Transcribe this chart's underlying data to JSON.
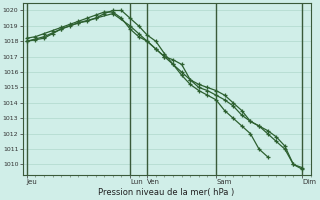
{
  "xlabel": "Pression niveau de la mer( hPa )",
  "ylim": [
    1009.3,
    1020.5
  ],
  "yticks": [
    1010,
    1011,
    1012,
    1013,
    1014,
    1015,
    1016,
    1017,
    1018,
    1019,
    1020
  ],
  "background_color": "#d0eee8",
  "grid_color": "#b0d8cc",
  "line_color": "#2d6030",
  "series1_x": [
    0,
    1,
    2,
    3,
    4,
    5,
    6,
    7,
    8,
    9,
    10,
    11,
    12,
    13,
    14,
    15,
    16,
    17,
    18,
    19,
    20,
    21,
    22,
    23,
    24,
    25,
    26,
    27,
    28
  ],
  "series1_y": [
    1018.0,
    1018.1,
    1018.2,
    1018.5,
    1018.8,
    1019.0,
    1019.2,
    1019.3,
    1019.5,
    1019.8,
    1020.0,
    1020.0,
    1019.5,
    1019.0,
    1018.4,
    1018.0,
    1017.2,
    1016.5,
    1015.8,
    1015.2,
    1014.8,
    1014.5,
    1014.2,
    1013.5,
    1013.0,
    1012.5,
    1012.0,
    1011.0,
    1010.5
  ],
  "series2_x": [
    0,
    1,
    2,
    3,
    4,
    5,
    6,
    7,
    8,
    9,
    10,
    11,
    12,
    13,
    14,
    15,
    16,
    17,
    18,
    19,
    20,
    21,
    22,
    23,
    24,
    25,
    26,
    27,
    28,
    29,
    30,
    31,
    32
  ],
  "series2_y": [
    1018.2,
    1018.3,
    1018.5,
    1018.7,
    1018.9,
    1019.1,
    1019.3,
    1019.5,
    1019.7,
    1019.9,
    1019.9,
    1019.5,
    1018.8,
    1018.3,
    1018.0,
    1017.5,
    1017.0,
    1016.5,
    1016.0,
    1015.5,
    1015.0,
    1014.8,
    1014.5,
    1014.2,
    1013.8,
    1013.2,
    1012.8,
    1012.5,
    1012.0,
    1011.5,
    1011.0,
    1010.0,
    1009.7
  ],
  "series3_x": [
    0,
    2,
    4,
    6,
    8,
    10,
    12,
    13,
    14,
    15,
    16,
    17,
    18,
    19,
    20,
    21,
    22,
    23,
    24,
    25,
    26,
    27,
    28,
    29,
    30,
    31,
    32
  ],
  "series3_y": [
    1018.0,
    1018.3,
    1018.8,
    1019.2,
    1019.5,
    1019.8,
    1019.0,
    1018.5,
    1018.0,
    1017.5,
    1017.0,
    1016.8,
    1016.5,
    1015.5,
    1015.2,
    1015.0,
    1014.8,
    1014.5,
    1014.0,
    1013.5,
    1012.8,
    1012.5,
    1012.2,
    1011.8,
    1011.2,
    1010.0,
    1009.8
  ],
  "day_lines_x": [
    0,
    12,
    14,
    22,
    32
  ],
  "xlim": [
    -0.5,
    33
  ],
  "xtick_day_positions": [
    0,
    12,
    14,
    22,
    32
  ],
  "xtick_day_labels": [
    "Jeu",
    "Lun",
    "Ven",
    "Sam",
    "Dim"
  ],
  "marker_size": 3.5,
  "linewidth": 0.9
}
